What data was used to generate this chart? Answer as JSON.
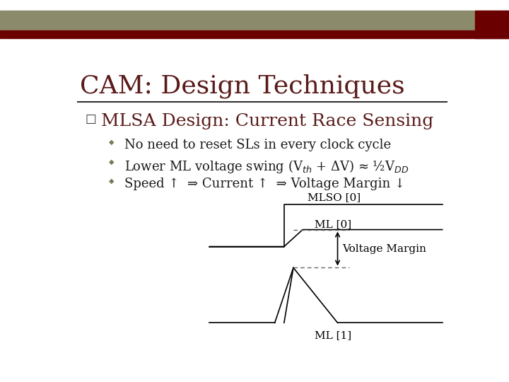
{
  "title": "CAM: Design Techniques",
  "title_fontsize": 26,
  "title_color": "#5a1a1a",
  "bg_color": "#ffffff",
  "header_olive_color": "#8b8b6b",
  "header_red_color": "#6b0000",
  "bullet_main": "MLSA Design: Current Race Sensing",
  "bullet_main_fontsize": 18,
  "bullet_sub": [
    "No need to reset SLs in every clock cycle",
    "Lower ML voltage swing (V$_{th}$ + ΔV) ≈ ½V$_{DD}$",
    "Speed ↑  ⇒ Current ↑  ⇒ Voltage Margin ↓"
  ],
  "bullet_sub_fontsize": 13,
  "diagram_line_color": "#000000",
  "diagram_label_fontsize": 11,
  "diagram_dashed_color": "#666666",
  "bullet_color": "#7a7a5a"
}
